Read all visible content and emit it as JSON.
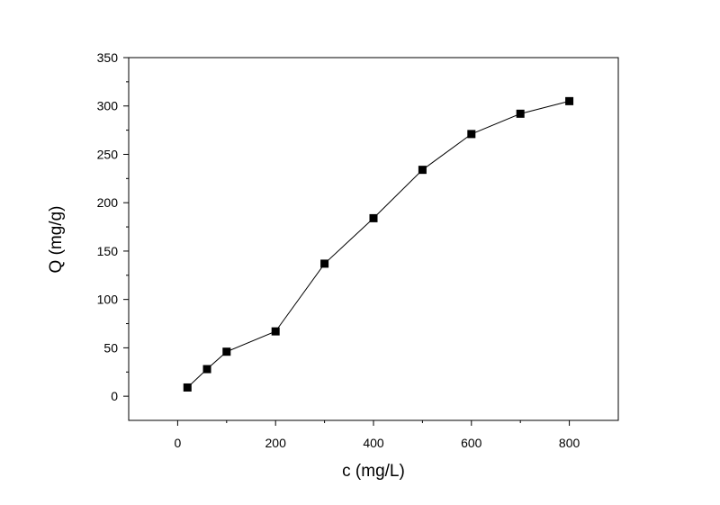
{
  "chart_data": {
    "type": "line",
    "title": "",
    "xlabel": "c (mg/L)",
    "ylabel": "Q (mg/g)",
    "xlim": [
      -100,
      900
    ],
    "ylim": [
      -25,
      350
    ],
    "xticks": [
      0,
      200,
      400,
      600,
      800
    ],
    "yticks": [
      0,
      50,
      100,
      150,
      200,
      250,
      300,
      350
    ],
    "grid": false,
    "legend": "none",
    "marker": "square",
    "colors": {
      "line": "#000000",
      "marker": "#000000",
      "axes": "#000000"
    },
    "series": [
      {
        "x": [
          20,
          60,
          100,
          200,
          300,
          400,
          500,
          600,
          700,
          800
        ],
        "y": [
          9,
          28,
          46,
          67,
          137,
          184,
          234,
          271,
          292,
          305
        ]
      }
    ]
  }
}
